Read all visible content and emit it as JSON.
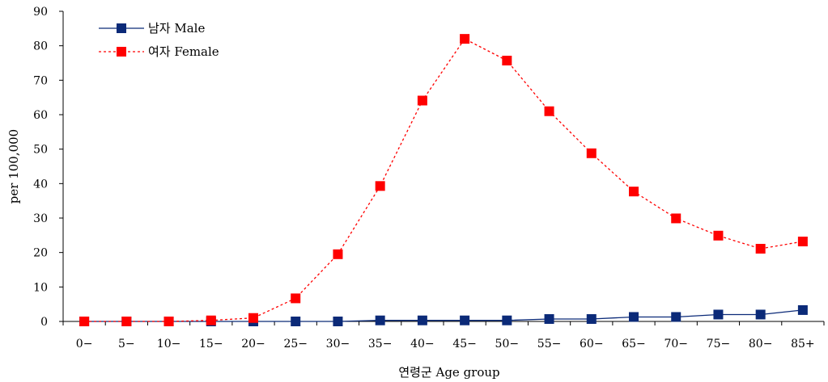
{
  "chart_data": {
    "type": "line",
    "categories": [
      "0−",
      "5−",
      "10−",
      "15−",
      "20−",
      "25−",
      "30−",
      "35−",
      "40−",
      "45−",
      "50−",
      "55−",
      "60−",
      "65−",
      "70−",
      "75−",
      "80−",
      "85+"
    ],
    "series": [
      {
        "name": "남자 Male",
        "color": "#0b2a78",
        "line_style": "solid",
        "marker": "square",
        "values": [
          0,
          0,
          0,
          0,
          0,
          0,
          0,
          0.3,
          0.3,
          0.3,
          0.3,
          0.7,
          0.7,
          1.3,
          1.3,
          2.0,
          2.0,
          3.3
        ]
      },
      {
        "name": "여자 Female",
        "color": "#ff0000",
        "line_style": "dotted",
        "marker": "square",
        "values": [
          0,
          0,
          0,
          0.3,
          1.0,
          6.7,
          19.5,
          39.3,
          64.1,
          82.0,
          75.7,
          61.0,
          48.8,
          37.7,
          29.9,
          24.9,
          21.1,
          23.2
        ]
      }
    ],
    "xlabel": "연령군 Age group",
    "ylabel": "per 100,000",
    "ylim": [
      0,
      90
    ],
    "yticks": [
      0,
      10,
      20,
      30,
      40,
      50,
      60,
      70,
      80,
      90
    ],
    "grid": false,
    "legend_position": "top-left"
  }
}
